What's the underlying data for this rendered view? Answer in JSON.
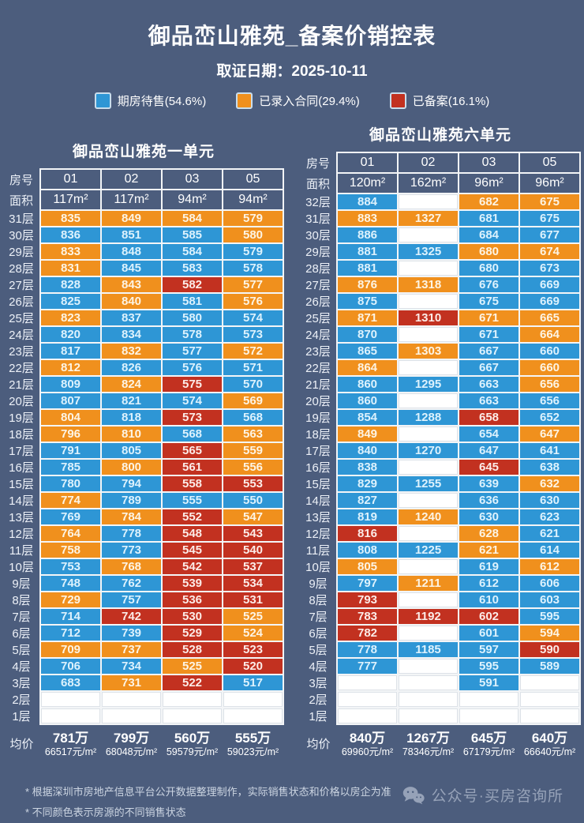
{
  "header": {
    "title": "御品峦山雅苑_备案价销控表",
    "date": "取证日期：2025-10-11"
  },
  "legend": [
    {
      "name": "available",
      "label": "期房待售(54.6%)",
      "color": "#2e96d5"
    },
    {
      "name": "contracted",
      "label": "已录入合同(29.4%)",
      "color": "#f0901d"
    },
    {
      "name": "registered",
      "label": "已备案(16.1%)",
      "color": "#c23120"
    }
  ],
  "status_colors": {
    "b": "#2e96d5",
    "o": "#f0901d",
    "r": "#c23120",
    "w": "#ffffff"
  },
  "chart_data": [
    {
      "type": "table",
      "title": "御品峦山雅苑一单元",
      "row_header": "房号",
      "area_header": "面积",
      "avg_header": "均价",
      "columns": [
        "01",
        "02",
        "03",
        "05"
      ],
      "areas": [
        "117m²",
        "117m²",
        "94m²",
        "94m²"
      ],
      "rows": [
        [
          "31层",
          [
            "835",
            "o"
          ],
          [
            "849",
            "o"
          ],
          [
            "584",
            "o"
          ],
          [
            "579",
            "o"
          ]
        ],
        [
          "30层",
          [
            "836",
            "b"
          ],
          [
            "851",
            "b"
          ],
          [
            "585",
            "b"
          ],
          [
            "580",
            "o"
          ]
        ],
        [
          "29层",
          [
            "833",
            "o"
          ],
          [
            "848",
            "b"
          ],
          [
            "584",
            "b"
          ],
          [
            "579",
            "b"
          ]
        ],
        [
          "28层",
          [
            "831",
            "o"
          ],
          [
            "845",
            "b"
          ],
          [
            "583",
            "b"
          ],
          [
            "578",
            "b"
          ]
        ],
        [
          "27层",
          [
            "828",
            "b"
          ],
          [
            "843",
            "o"
          ],
          [
            "582",
            "r"
          ],
          [
            "577",
            "o"
          ]
        ],
        [
          "26层",
          [
            "825",
            "b"
          ],
          [
            "840",
            "o"
          ],
          [
            "581",
            "b"
          ],
          [
            "576",
            "o"
          ]
        ],
        [
          "25层",
          [
            "823",
            "o"
          ],
          [
            "837",
            "b"
          ],
          [
            "580",
            "b"
          ],
          [
            "574",
            "b"
          ]
        ],
        [
          "24层",
          [
            "820",
            "b"
          ],
          [
            "834",
            "b"
          ],
          [
            "578",
            "b"
          ],
          [
            "573",
            "b"
          ]
        ],
        [
          "23层",
          [
            "817",
            "b"
          ],
          [
            "832",
            "o"
          ],
          [
            "577",
            "b"
          ],
          [
            "572",
            "o"
          ]
        ],
        [
          "22层",
          [
            "812",
            "o"
          ],
          [
            "826",
            "b"
          ],
          [
            "576",
            "b"
          ],
          [
            "571",
            "b"
          ]
        ],
        [
          "21层",
          [
            "809",
            "b"
          ],
          [
            "824",
            "o"
          ],
          [
            "575",
            "r"
          ],
          [
            "570",
            "b"
          ]
        ],
        [
          "20层",
          [
            "807",
            "b"
          ],
          [
            "821",
            "b"
          ],
          [
            "574",
            "b"
          ],
          [
            "569",
            "o"
          ]
        ],
        [
          "19层",
          [
            "804",
            "o"
          ],
          [
            "818",
            "b"
          ],
          [
            "573",
            "r"
          ],
          [
            "568",
            "b"
          ]
        ],
        [
          "18层",
          [
            "796",
            "o"
          ],
          [
            "810",
            "o"
          ],
          [
            "568",
            "b"
          ],
          [
            "563",
            "o"
          ]
        ],
        [
          "17层",
          [
            "791",
            "b"
          ],
          [
            "805",
            "b"
          ],
          [
            "565",
            "r"
          ],
          [
            "559",
            "o"
          ]
        ],
        [
          "16层",
          [
            "785",
            "b"
          ],
          [
            "800",
            "o"
          ],
          [
            "561",
            "r"
          ],
          [
            "556",
            "o"
          ]
        ],
        [
          "15层",
          [
            "780",
            "b"
          ],
          [
            "794",
            "b"
          ],
          [
            "558",
            "r"
          ],
          [
            "553",
            "r"
          ]
        ],
        [
          "14层",
          [
            "774",
            "o"
          ],
          [
            "789",
            "b"
          ],
          [
            "555",
            "b"
          ],
          [
            "550",
            "b"
          ]
        ],
        [
          "13层",
          [
            "769",
            "b"
          ],
          [
            "784",
            "o"
          ],
          [
            "552",
            "r"
          ],
          [
            "547",
            "o"
          ]
        ],
        [
          "12层",
          [
            "764",
            "o"
          ],
          [
            "778",
            "b"
          ],
          [
            "548",
            "r"
          ],
          [
            "543",
            "r"
          ]
        ],
        [
          "11层",
          [
            "758",
            "o"
          ],
          [
            "773",
            "b"
          ],
          [
            "545",
            "r"
          ],
          [
            "540",
            "r"
          ]
        ],
        [
          "10层",
          [
            "753",
            "b"
          ],
          [
            "768",
            "o"
          ],
          [
            "542",
            "r"
          ],
          [
            "537",
            "r"
          ]
        ],
        [
          "9层",
          [
            "748",
            "b"
          ],
          [
            "762",
            "b"
          ],
          [
            "539",
            "r"
          ],
          [
            "534",
            "r"
          ]
        ],
        [
          "8层",
          [
            "729",
            "o"
          ],
          [
            "757",
            "b"
          ],
          [
            "536",
            "r"
          ],
          [
            "531",
            "r"
          ]
        ],
        [
          "7层",
          [
            "714",
            "b"
          ],
          [
            "742",
            "r"
          ],
          [
            "530",
            "r"
          ],
          [
            "525",
            "o"
          ]
        ],
        [
          "6层",
          [
            "712",
            "b"
          ],
          [
            "739",
            "b"
          ],
          [
            "529",
            "r"
          ],
          [
            "524",
            "o"
          ]
        ],
        [
          "5层",
          [
            "709",
            "o"
          ],
          [
            "737",
            "o"
          ],
          [
            "528",
            "r"
          ],
          [
            "523",
            "r"
          ]
        ],
        [
          "4层",
          [
            "706",
            "b"
          ],
          [
            "734",
            "b"
          ],
          [
            "525",
            "o"
          ],
          [
            "520",
            "r"
          ]
        ],
        [
          "3层",
          [
            "683",
            "b"
          ],
          [
            "731",
            "o"
          ],
          [
            "522",
            "r"
          ],
          [
            "517",
            "b"
          ]
        ],
        [
          "2层",
          [
            "",
            "w"
          ],
          [
            "",
            "w"
          ],
          [
            "",
            "w"
          ],
          [
            "",
            "w"
          ]
        ],
        [
          "1层",
          [
            "",
            "w"
          ],
          [
            "",
            "w"
          ],
          [
            "",
            "w"
          ],
          [
            "",
            "w"
          ]
        ]
      ],
      "avg": [
        [
          "781万",
          "66517元/m²"
        ],
        [
          "799万",
          "68048元/m²"
        ],
        [
          "560万",
          "59579元/m²"
        ],
        [
          "555万",
          "59023元/m²"
        ]
      ]
    },
    {
      "type": "table",
      "title": "御品峦山雅苑六单元",
      "row_header": "房号",
      "area_header": "面积",
      "avg_header": "均价",
      "columns": [
        "01",
        "02",
        "03",
        "05"
      ],
      "areas": [
        "120m²",
        "162m²",
        "96m²",
        "96m²"
      ],
      "rows": [
        [
          "32层",
          [
            "884",
            "b"
          ],
          [
            "",
            "w"
          ],
          [
            "682",
            "o"
          ],
          [
            "675",
            "o"
          ]
        ],
        [
          "31层",
          [
            "883",
            "o"
          ],
          [
            "1327",
            "o"
          ],
          [
            "681",
            "b"
          ],
          [
            "675",
            "b"
          ]
        ],
        [
          "30层",
          [
            "886",
            "b"
          ],
          [
            "",
            "w"
          ],
          [
            "684",
            "b"
          ],
          [
            "677",
            "b"
          ]
        ],
        [
          "29层",
          [
            "881",
            "b"
          ],
          [
            "1325",
            "b"
          ],
          [
            "680",
            "o"
          ],
          [
            "674",
            "o"
          ]
        ],
        [
          "28层",
          [
            "881",
            "b"
          ],
          [
            "",
            "w"
          ],
          [
            "680",
            "b"
          ],
          [
            "673",
            "b"
          ]
        ],
        [
          "27层",
          [
            "876",
            "o"
          ],
          [
            "1318",
            "o"
          ],
          [
            "676",
            "b"
          ],
          [
            "669",
            "b"
          ]
        ],
        [
          "26层",
          [
            "875",
            "b"
          ],
          [
            "",
            "w"
          ],
          [
            "675",
            "b"
          ],
          [
            "669",
            "b"
          ]
        ],
        [
          "25层",
          [
            "871",
            "o"
          ],
          [
            "1310",
            "r"
          ],
          [
            "671",
            "o"
          ],
          [
            "665",
            "o"
          ]
        ],
        [
          "24层",
          [
            "870",
            "b"
          ],
          [
            "",
            "w"
          ],
          [
            "671",
            "b"
          ],
          [
            "664",
            "o"
          ]
        ],
        [
          "23层",
          [
            "865",
            "b"
          ],
          [
            "1303",
            "o"
          ],
          [
            "667",
            "b"
          ],
          [
            "660",
            "b"
          ]
        ],
        [
          "22层",
          [
            "864",
            "o"
          ],
          [
            "",
            "w"
          ],
          [
            "667",
            "b"
          ],
          [
            "660",
            "o"
          ]
        ],
        [
          "21层",
          [
            "860",
            "b"
          ],
          [
            "1295",
            "b"
          ],
          [
            "663",
            "b"
          ],
          [
            "656",
            "o"
          ]
        ],
        [
          "20层",
          [
            "860",
            "b"
          ],
          [
            "",
            "w"
          ],
          [
            "663",
            "b"
          ],
          [
            "656",
            "b"
          ]
        ],
        [
          "19层",
          [
            "854",
            "b"
          ],
          [
            "1288",
            "b"
          ],
          [
            "658",
            "r"
          ],
          [
            "652",
            "b"
          ]
        ],
        [
          "18层",
          [
            "849",
            "o"
          ],
          [
            "",
            "w"
          ],
          [
            "654",
            "b"
          ],
          [
            "647",
            "o"
          ]
        ],
        [
          "17层",
          [
            "840",
            "b"
          ],
          [
            "1270",
            "b"
          ],
          [
            "647",
            "b"
          ],
          [
            "641",
            "b"
          ]
        ],
        [
          "16层",
          [
            "838",
            "b"
          ],
          [
            "",
            "w"
          ],
          [
            "645",
            "r"
          ],
          [
            "638",
            "b"
          ]
        ],
        [
          "15层",
          [
            "829",
            "b"
          ],
          [
            "1255",
            "b"
          ],
          [
            "639",
            "b"
          ],
          [
            "632",
            "o"
          ]
        ],
        [
          "14层",
          [
            "827",
            "b"
          ],
          [
            "",
            "w"
          ],
          [
            "636",
            "b"
          ],
          [
            "630",
            "b"
          ]
        ],
        [
          "13层",
          [
            "819",
            "b"
          ],
          [
            "1240",
            "o"
          ],
          [
            "630",
            "b"
          ],
          [
            "623",
            "b"
          ]
        ],
        [
          "12层",
          [
            "816",
            "r"
          ],
          [
            "",
            "w"
          ],
          [
            "628",
            "o"
          ],
          [
            "621",
            "b"
          ]
        ],
        [
          "11层",
          [
            "808",
            "b"
          ],
          [
            "1225",
            "b"
          ],
          [
            "621",
            "o"
          ],
          [
            "614",
            "b"
          ]
        ],
        [
          "10层",
          [
            "805",
            "o"
          ],
          [
            "",
            "w"
          ],
          [
            "619",
            "b"
          ],
          [
            "612",
            "o"
          ]
        ],
        [
          "9层",
          [
            "797",
            "b"
          ],
          [
            "1211",
            "o"
          ],
          [
            "612",
            "b"
          ],
          [
            "606",
            "b"
          ]
        ],
        [
          "8层",
          [
            "793",
            "r"
          ],
          [
            "",
            "w"
          ],
          [
            "610",
            "b"
          ],
          [
            "603",
            "b"
          ]
        ],
        [
          "7层",
          [
            "783",
            "r"
          ],
          [
            "1192",
            "r"
          ],
          [
            "602",
            "r"
          ],
          [
            "595",
            "b"
          ]
        ],
        [
          "6层",
          [
            "782",
            "r"
          ],
          [
            "",
            "w"
          ],
          [
            "601",
            "b"
          ],
          [
            "594",
            "o"
          ]
        ],
        [
          "5层",
          [
            "778",
            "b"
          ],
          [
            "1185",
            "b"
          ],
          [
            "597",
            "b"
          ],
          [
            "590",
            "r"
          ]
        ],
        [
          "4层",
          [
            "777",
            "b"
          ],
          [
            "",
            "w"
          ],
          [
            "595",
            "b"
          ],
          [
            "589",
            "b"
          ]
        ],
        [
          "3层",
          [
            "",
            "w"
          ],
          [
            "",
            "w"
          ],
          [
            "591",
            "b"
          ],
          [
            "",
            "w"
          ]
        ],
        [
          "2层",
          [
            "",
            "w"
          ],
          [
            "",
            "w"
          ],
          [
            "",
            "w"
          ],
          [
            "",
            "w"
          ]
        ],
        [
          "1层",
          [
            "",
            "w"
          ],
          [
            "",
            "w"
          ],
          [
            "",
            "w"
          ],
          [
            "",
            "w"
          ]
        ]
      ],
      "avg": [
        [
          "840万",
          "69960元/m²"
        ],
        [
          "1267万",
          "78346元/m²"
        ],
        [
          "645万",
          "67179元/m²"
        ],
        [
          "640万",
          "66640元/m²"
        ]
      ]
    }
  ],
  "footnotes": [
    "* 根据深圳市房地产信息平台公开数据整理制作，实际销售状态和价格以房企为准",
    "* 不同颜色表示房源的不同销售状态"
  ],
  "watermark": {
    "icon": "wechat-icon",
    "text": "公众号·买房咨询所"
  }
}
